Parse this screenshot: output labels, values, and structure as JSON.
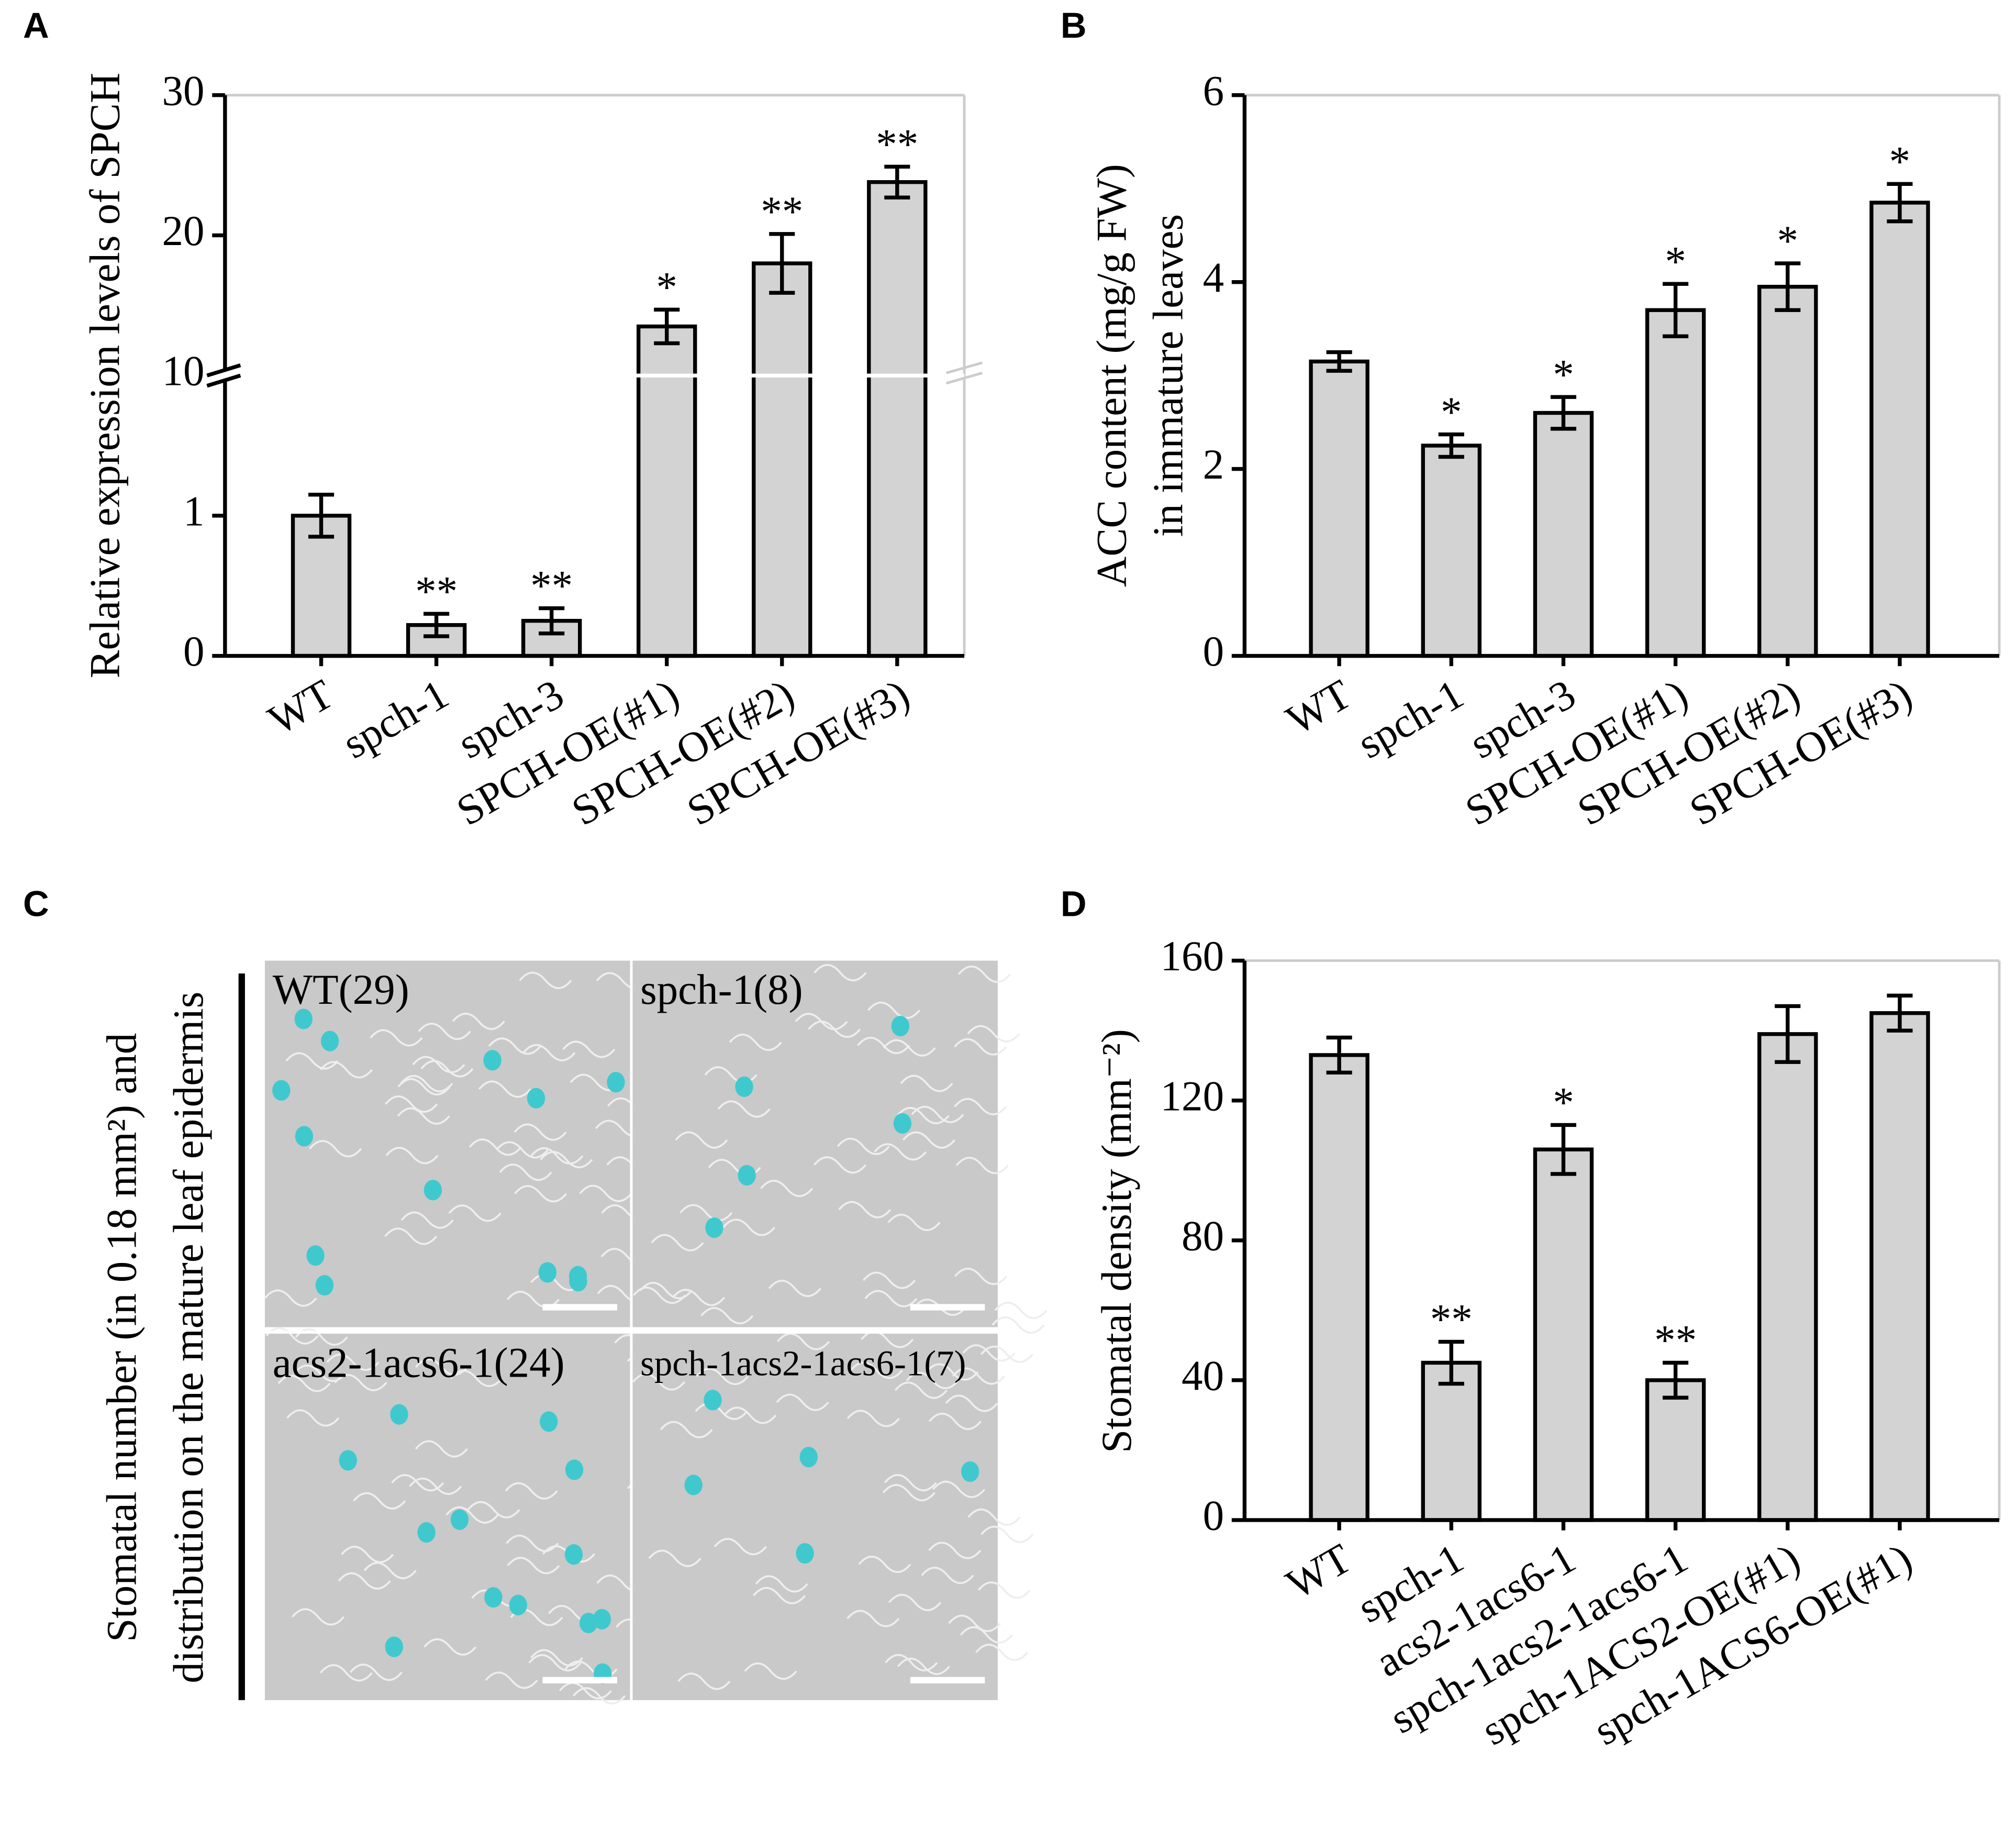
{
  "chart_data": [
    {
      "type": "bar",
      "panel": "A",
      "ylabel": [
        "Relative expression levels of SPCH"
      ],
      "categories": [
        "WT",
        "spch-1",
        "spch-3",
        "SPCH-OE(#1)",
        "SPCH-OE(#2)",
        "SPCH-OE(#3)"
      ],
      "values": [
        1.0,
        0.22,
        0.25,
        13.5,
        18.0,
        23.8
      ],
      "errors": [
        0.15,
        0.08,
        0.09,
        1.2,
        2.1,
        1.1
      ],
      "annotations": [
        null,
        "**",
        "**",
        "*",
        "**",
        "**"
      ],
      "color": "#d3d3d3",
      "ylim": [
        0,
        30
      ],
      "ybreak": [
        2,
        10
      ],
      "yticks": [
        0,
        1,
        10,
        20,
        30
      ]
    },
    {
      "type": "bar",
      "panel": "B",
      "ylabel": [
        "ACC content (mg/g FW)",
        "in immature leaves"
      ],
      "categories": [
        "WT",
        "spch-1",
        "spch-3",
        "SPCH-OE(#1)",
        "SPCH-OE(#2)",
        "SPCH-OE(#3)"
      ],
      "values": [
        3.15,
        2.25,
        2.6,
        3.7,
        3.95,
        4.85
      ],
      "errors": [
        0.1,
        0.12,
        0.17,
        0.28,
        0.25,
        0.2
      ],
      "annotations": [
        null,
        "*",
        "*",
        "*",
        "*",
        "*"
      ],
      "color": "#d3d3d3",
      "ylim": [
        0,
        6
      ],
      "yticks": [
        0,
        2,
        4,
        6
      ]
    },
    {
      "type": "image",
      "panel": "C",
      "ylabel": [
        "Stomatal number (in 0.18 mm²) and",
        "distribution on the mature leaf epidermis"
      ],
      "panels": [
        "WT(29)",
        "spch-1(8)",
        "acs2-1acs6-1(24)",
        "spch-1acs2-1acs6-1(7)"
      ]
    },
    {
      "type": "bar",
      "panel": "D",
      "ylabel": [
        "Stomatal density (mm⁻²)"
      ],
      "categories": [
        "WT",
        "spch-1",
        "acs2-1acs6-1",
        "spch-1acs2-1acs6-1",
        "spch-1ACS2-OE(#1)",
        "spch-1ACS6-OE(#1)"
      ],
      "values": [
        133,
        45,
        106,
        40,
        139,
        145
      ],
      "errors": [
        5,
        6,
        7,
        5,
        8,
        5
      ],
      "annotations": [
        null,
        "**",
        "*",
        "**",
        null,
        null
      ],
      "color": "#d3d3d3",
      "ylim": [
        0,
        160
      ],
      "yticks": [
        0,
        40,
        80,
        120,
        160
      ]
    }
  ]
}
